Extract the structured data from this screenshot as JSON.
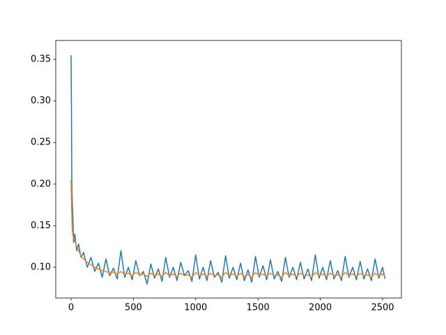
{
  "chart_data": {
    "type": "line",
    "x": [
      0,
      3,
      6,
      10,
      15,
      20,
      30,
      45,
      60,
      80,
      100,
      130,
      160,
      190,
      220,
      250,
      280,
      310,
      340,
      370,
      400,
      430,
      460,
      490,
      520,
      550,
      580,
      610,
      640,
      670,
      700,
      730,
      760,
      790,
      820,
      850,
      880,
      910,
      940,
      970,
      1000,
      1030,
      1060,
      1090,
      1120,
      1150,
      1180,
      1210,
      1240,
      1270,
      1300,
      1330,
      1360,
      1390,
      1420,
      1450,
      1480,
      1510,
      1540,
      1570,
      1600,
      1630,
      1660,
      1690,
      1720,
      1750,
      1780,
      1810,
      1840,
      1870,
      1900,
      1930,
      1960,
      1990,
      2020,
      2050,
      2080,
      2110,
      2140,
      2170,
      2200,
      2230,
      2260,
      2290,
      2320,
      2350,
      2380,
      2410,
      2440,
      2470,
      2500,
      2520
    ],
    "series": [
      {
        "color": "#1f77b4",
        "values": [
          0.355,
          0.29,
          0.2,
          0.175,
          0.16,
          0.13,
          0.14,
          0.12,
          0.128,
          0.112,
          0.118,
          0.1,
          0.112,
          0.095,
          0.105,
          0.088,
          0.11,
          0.09,
          0.099,
          0.086,
          0.12,
          0.088,
          0.1,
          0.085,
          0.108,
          0.09,
          0.095,
          0.08,
          0.104,
          0.087,
          0.098,
          0.083,
          0.112,
          0.088,
          0.1,
          0.084,
          0.106,
          0.09,
          0.096,
          0.083,
          0.115,
          0.086,
          0.1,
          0.084,
          0.108,
          0.088,
          0.094,
          0.082,
          0.114,
          0.087,
          0.1,
          0.085,
          0.105,
          0.084,
          0.097,
          0.082,
          0.113,
          0.088,
          0.102,
          0.085,
          0.109,
          0.086,
          0.095,
          0.083,
          0.112,
          0.088,
          0.1,
          0.085,
          0.106,
          0.086,
          0.098,
          0.084,
          0.115,
          0.087,
          0.1,
          0.085,
          0.108,
          0.086,
          0.096,
          0.084,
          0.113,
          0.088,
          0.1,
          0.085,
          0.107,
          0.086,
          0.098,
          0.084,
          0.11,
          0.087,
          0.1,
          0.086
        ]
      },
      {
        "color": "#ff7f0e",
        "values": [
          0.205,
          0.18,
          0.16,
          0.145,
          0.138,
          0.136,
          0.132,
          0.125,
          0.12,
          0.114,
          0.11,
          0.106,
          0.103,
          0.1,
          0.098,
          0.096,
          0.095,
          0.093,
          0.094,
          0.092,
          0.095,
          0.091,
          0.093,
          0.09,
          0.094,
          0.091,
          0.092,
          0.089,
          0.093,
          0.09,
          0.092,
          0.089,
          0.094,
          0.09,
          0.092,
          0.089,
          0.093,
          0.09,
          0.091,
          0.088,
          0.094,
          0.09,
          0.092,
          0.089,
          0.093,
          0.09,
          0.091,
          0.088,
          0.094,
          0.09,
          0.092,
          0.089,
          0.093,
          0.089,
          0.091,
          0.088,
          0.094,
          0.09,
          0.092,
          0.089,
          0.093,
          0.09,
          0.091,
          0.088,
          0.094,
          0.09,
          0.092,
          0.089,
          0.093,
          0.09,
          0.091,
          0.088,
          0.094,
          0.09,
          0.092,
          0.089,
          0.093,
          0.09,
          0.091,
          0.088,
          0.094,
          0.09,
          0.092,
          0.089,
          0.093,
          0.09,
          0.091,
          0.088,
          0.093,
          0.09,
          0.092,
          0.089
        ]
      }
    ],
    "xlim": [
      -123,
      2651
    ],
    "xticks": [
      0,
      500,
      1000,
      1500,
      2000,
      2500
    ],
    "ylim": [
      0.0631,
      0.3727
    ],
    "yticks": [
      {
        "value": 0.1,
        "label": "0.10"
      },
      0.15,
      {
        "value": 0.2,
        "label": "0.20"
      },
      0.25,
      {
        "value": 0.3,
        "label": "0.30"
      },
      0.35
    ],
    "grid": false
  }
}
